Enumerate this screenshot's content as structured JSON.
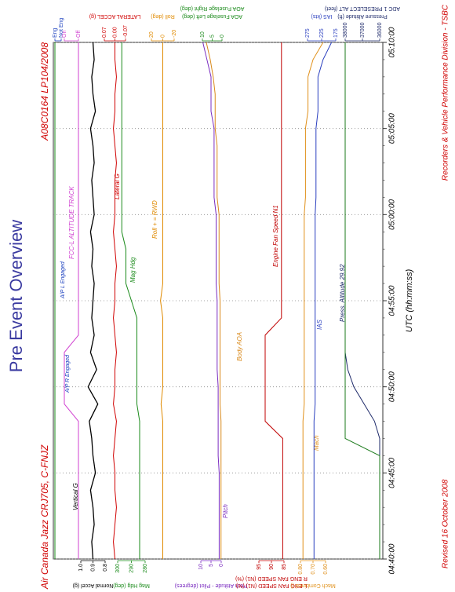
{
  "chart_data": {
    "type": "line",
    "title": "Pre Event Overview",
    "subtitle": "Air Canada Jazz CRJ705, C-FNJZ",
    "reference": "A08C0164  LP104/2008",
    "footer_left": "Revised 16 October 2008",
    "footer_right": "Recorders & Vehicle Performance Division - TSBC",
    "xlabel": "UTC (hh:mm:ss)",
    "x": [
      280,
      281,
      282,
      283,
      284,
      285,
      286,
      287,
      288,
      289,
      290,
      291,
      292,
      293,
      294,
      295,
      296,
      297,
      298,
      299,
      300,
      301,
      302,
      303,
      304,
      305,
      306,
      307,
      308,
      309,
      310
    ],
    "xlim": [
      280,
      310
    ],
    "xticks": [
      {
        "value": 280,
        "label": "04:40:00"
      },
      {
        "value": 285,
        "label": "04:45:00"
      },
      {
        "value": 290,
        "label": "04:50:00"
      },
      {
        "value": 295,
        "label": "04:55:00"
      },
      {
        "value": 300,
        "label": "05:00:00"
      },
      {
        "value": 305,
        "label": "05:05:00"
      },
      {
        "value": 310,
        "label": "05:10:00"
      }
    ],
    "grid": true,
    "axes": [
      {
        "side": "right",
        "color": "#1a3fbf",
        "ylim": [
          0,
          1
        ],
        "yticks": [
          {
            "value": 1,
            "label": "Eng"
          },
          {
            "value": 0,
            "label": "Not Eng"
          }
        ]
      },
      {
        "side": "right",
        "color": "#d040d0",
        "ylim": [
          0,
          1
        ],
        "yticks": [
          {
            "value": 1,
            "label": "On"
          },
          {
            "value": 0,
            "label": "Off"
          }
        ]
      },
      {
        "side": "left",
        "label": "Normal Accel (g)",
        "color": "#000000",
        "ylim": [
          0.8,
          1.0
        ],
        "yticks": [
          {
            "value": 1,
            "label": "1.0"
          },
          0.9,
          0.8
        ]
      },
      {
        "side": "left",
        "label": "Mag Hdg (deg)",
        "color": "#1a8a1a",
        "ylim": [
          280,
          300
        ],
        "yticks": [
          300,
          290,
          280
        ]
      },
      {
        "side": "right",
        "label": "LATERAL ACCEL (g)",
        "color": "#d00000",
        "ylim": [
          -0.07,
          0.07
        ],
        "yticks": [
          0.07,
          {
            "value": 0,
            "label": "0.00"
          },
          -0.07
        ]
      },
      {
        "side": "right",
        "label": "Roll (deg)",
        "color": "#e08a00",
        "ylim": [
          -20,
          20
        ],
        "yticks": [
          20,
          0,
          -20
        ]
      },
      {
        "side": "left",
        "label": "Pitch Attitude - Pilot (degrees)",
        "color": "#7a2cc0",
        "ylim": [
          0,
          10
        ],
        "yticks": [
          10,
          5,
          0
        ]
      },
      {
        "side": "right",
        "label": "AOA Fuselage Left (deg)",
        "label2": "AOA Fuselage Right (deg)",
        "color": "#1a8a1a",
        "ylim": [
          0,
          10
        ],
        "yticks": [
          10,
          5,
          0
        ]
      },
      {
        "side": "left",
        "label": "L ENG FAN SPEED (N1) (%)",
        "label2": "R ENG FAN SPEED (N1) (%)",
        "color": "#c00000",
        "ylim": [
          85,
          95
        ],
        "yticks": [
          95,
          90,
          85
        ]
      },
      {
        "side": "left",
        "label": "Mach Combined ()",
        "color": "#e0901a",
        "ylim": [
          0.6,
          0.8
        ],
        "yticks": [
          {
            "value": 0.8,
            "label": "0.80"
          },
          {
            "value": 0.7,
            "label": "0.70"
          },
          {
            "value": 0.6,
            "label": "0.60"
          }
        ]
      },
      {
        "side": "right",
        "label": "IAS (kts)",
        "color": "#2a3fbf",
        "ylim": [
          175,
          275
        ],
        "yticks": [
          275,
          225,
          175
        ]
      },
      {
        "side": "right",
        "label": "Pressure Altitude (ft)",
        "label2": "ADC 1 PRESELECT ALT (feet)",
        "color": "#1e2a6a",
        "ylim": [
          36000,
          38000
        ],
        "yticks": [
          38000,
          37000,
          36000
        ]
      }
    ],
    "series": [
      {
        "name": "Vertical G",
        "color": "#000000",
        "axis": 2,
        "values": [
          0.9,
          0.91,
          0.89,
          0.9,
          0.92,
          0.88,
          0.9,
          0.91,
          0.93,
          0.86,
          0.94,
          0.87,
          0.92,
          0.89,
          0.91,
          0.9,
          0.89,
          0.91,
          0.9,
          0.92,
          0.89,
          0.9,
          0.91,
          0.89,
          0.9,
          0.92,
          0.88,
          0.9,
          0.91,
          0.89,
          0.9
        ]
      },
      {
        "name": "Lateral G",
        "color": "#d00000",
        "axis": 4,
        "values": [
          0,
          0.01,
          0,
          -0.01,
          0,
          0,
          0.01,
          0,
          -0.01,
          0.01,
          0,
          0,
          -0.01,
          0,
          0.01,
          0,
          0,
          -0.01,
          0,
          0.01,
          0,
          0,
          0,
          -0.01,
          0,
          0.01,
          0,
          0,
          -0.01,
          0,
          0
        ]
      },
      {
        "name": "Mag Hdg",
        "color": "#1a8a1a",
        "axis": 3,
        "values": [
          284,
          284,
          284,
          284,
          284,
          284,
          284,
          284,
          284,
          286,
          286,
          286,
          286,
          286,
          286,
          290,
          294,
          294,
          294,
          297,
          297,
          297,
          297,
          297,
          297,
          297,
          297,
          297,
          297,
          297,
          297
        ]
      },
      {
        "name": "Roll + = RWD",
        "color": "#e08a00",
        "axis": 5,
        "values": [
          0,
          0,
          0,
          0,
          0,
          0,
          0,
          0,
          0,
          3,
          0,
          0,
          0,
          0,
          0,
          4,
          0,
          0,
          0,
          0,
          0,
          0,
          0,
          0,
          0,
          0,
          0,
          0,
          0,
          0,
          0
        ]
      },
      {
        "name": "Pitch",
        "color": "#7a2cc0",
        "axis": 6,
        "values": [
          1,
          1,
          1,
          1,
          1,
          1,
          1.5,
          1.5,
          1.5,
          1.5,
          1.5,
          2,
          2,
          2,
          2,
          2,
          2.5,
          2.5,
          2.5,
          2.5,
          2.5,
          3.5,
          3.5,
          3.5,
          3.5,
          3.5,
          5,
          5,
          5,
          7,
          9
        ]
      },
      {
        "name": "Body AOA",
        "color": "#d9891a",
        "axis": 7,
        "values": [
          0.5,
          0.5,
          0.5,
          0.5,
          0.5,
          0.5,
          0.5,
          0.5,
          0.5,
          1,
          1,
          1,
          1,
          1,
          1,
          1,
          1.5,
          1.5,
          1.5,
          1.5,
          1.5,
          2.5,
          2.5,
          2.5,
          2.5,
          3.5,
          3.5,
          3.5,
          4.5,
          6,
          8
        ]
      },
      {
        "name": "Engine Fan Speed N1",
        "color": "#c00000",
        "axis": 8,
        "values": [
          85.5,
          85.5,
          85.5,
          85.5,
          85.5,
          85.5,
          85.5,
          85.5,
          92.5,
          92.5,
          92.5,
          92.5,
          92.5,
          92.5,
          86,
          86,
          86,
          86,
          86,
          86,
          86,
          86,
          86,
          86,
          86,
          86,
          86,
          86,
          86,
          86,
          86
        ]
      },
      {
        "name": "Mach",
        "color": "#e0901a",
        "axis": 9,
        "values": [
          0.78,
          0.78,
          0.78,
          0.78,
          0.78,
          0.78,
          0.78,
          0.78,
          0.78,
          0.77,
          0.77,
          0.77,
          0.77,
          0.77,
          0.77,
          0.77,
          0.77,
          0.77,
          0.77,
          0.77,
          0.77,
          0.76,
          0.76,
          0.76,
          0.76,
          0.76,
          0.74,
          0.74,
          0.74,
          0.7,
          0.62
        ]
      },
      {
        "name": "IAS",
        "color": "#2a3fbf",
        "axis": 10,
        "values": [
          252,
          252,
          252,
          252,
          252,
          252,
          252,
          252,
          252,
          248,
          248,
          248,
          248,
          248,
          248,
          248,
          248,
          248,
          248,
          248,
          248,
          245,
          245,
          245,
          245,
          245,
          238,
          238,
          238,
          220,
          190
        ]
      },
      {
        "name": "Press. Altitude 29.92",
        "color": "#1e2a6a",
        "axis": 11,
        "values": [
          36000,
          36000,
          36000,
          36000,
          36000,
          36000,
          36000,
          36000,
          36300,
          36900,
          37500,
          37850,
          38000,
          38000,
          38000,
          38000,
          38000,
          38000,
          38000,
          38000,
          38000,
          38000,
          38000,
          38000,
          38000,
          38000,
          38000,
          38000,
          38000,
          38000,
          38000
        ]
      },
      {
        "color": "#1a7a1a",
        "axis": 11,
        "values": [
          36000,
          36000,
          36000,
          36000,
          36000,
          36000,
          36000,
          38000,
          38000,
          38000,
          38000,
          38000,
          38000,
          38000,
          38000,
          38000,
          38000,
          38000,
          38000,
          38000,
          38000,
          38000,
          38000,
          38000,
          38000,
          38000,
          38000,
          38000,
          38000,
          38000,
          38000
        ]
      },
      {
        "name": "FCC-L ALTITUDE TRACK",
        "color": "#d040d0",
        "axis": 1,
        "values": [
          0,
          0,
          0,
          0,
          0,
          0,
          0,
          0,
          0,
          1,
          1,
          1,
          1,
          0,
          0,
          0,
          0,
          0,
          0,
          0,
          0,
          0,
          0,
          0,
          0,
          0,
          0,
          0,
          0,
          0,
          0
        ]
      },
      {
        "color": "#1a8a1a",
        "axis": 0,
        "values": [
          1,
          1,
          1,
          1,
          1,
          1,
          1,
          1,
          1,
          1,
          1,
          1,
          1,
          1,
          1,
          1,
          1,
          1,
          1,
          1,
          1,
          1,
          1,
          1,
          1,
          1,
          1,
          1,
          1,
          1,
          1
        ]
      }
    ],
    "annotations": [
      "A/P R Engaged",
      "A/P L Engaged"
    ]
  }
}
